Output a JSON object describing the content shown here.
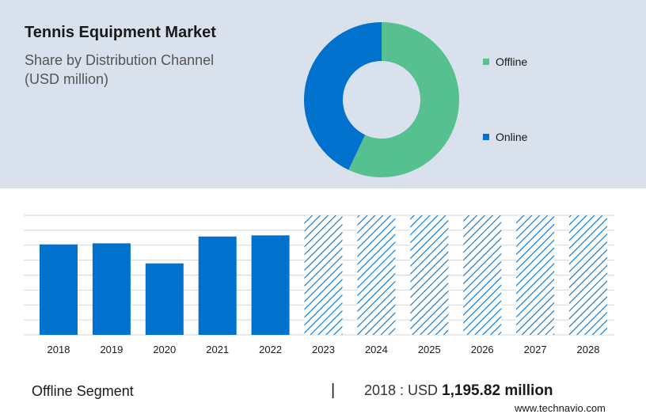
{
  "header": {
    "title": "Tennis Equipment Market",
    "subtitle_line1": "Share by Distribution Channel",
    "subtitle_line2": "(USD million)"
  },
  "colors": {
    "offline": "#56c091",
    "online": "#0072ce",
    "panel": "#d9e1ec",
    "forecast_hatch": "#0072ce"
  },
  "chart_data": [
    {
      "type": "pie",
      "variant": "donut",
      "title": "Share by Distribution Channel",
      "slices": [
        {
          "label": "Offline",
          "value": 57
        },
        {
          "label": "Online",
          "value": 43
        }
      ],
      "legend": "right"
    },
    {
      "type": "bar",
      "series_label": "Offline Segment",
      "categories": [
        "2018",
        "2019",
        "2020",
        "2021",
        "2022",
        "2023",
        "2024",
        "2025",
        "2026",
        "2027",
        "2028"
      ],
      "values": [
        1195.82,
        1210,
        945,
        1300,
        1315,
        null,
        null,
        null,
        null,
        null,
        null
      ],
      "forecast_categories": [
        "2023",
        "2024",
        "2025",
        "2026",
        "2027",
        "2028"
      ],
      "ylim": [
        0,
        1580
      ],
      "grid": true
    }
  ],
  "footer": {
    "segment": "Offline Segment",
    "divider": "|",
    "stat_prefix": "2018 : USD",
    "stat_value": "1,195.82 million",
    "site": "www.technavio.com"
  }
}
